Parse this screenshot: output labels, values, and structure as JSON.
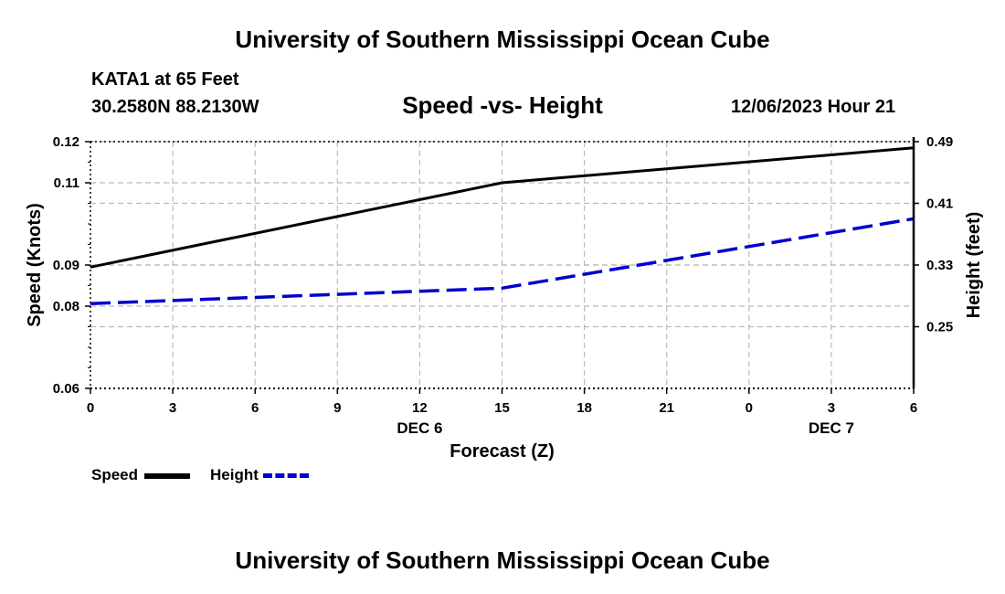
{
  "header": {
    "title": "University of Southern Mississippi Ocean Cube",
    "station": "KATA1 at 65 Feet",
    "coords": "30.2580N  88.2130W",
    "chart_title": "Speed -vs- Height",
    "datetime": "12/06/2023 Hour 21"
  },
  "footer": {
    "title": "University of Southern Mississippi Ocean Cube"
  },
  "legend": {
    "speed_label": "Speed",
    "height_label": "Height"
  },
  "colors": {
    "speed": "#000000",
    "height": "#0000cc",
    "grid": "#bbbbbb"
  },
  "chart_data": {
    "type": "line",
    "title": "Speed -vs- Height",
    "xlabel": "Forecast (Z)",
    "ylabel": "Speed (Knots)",
    "y2label": "Height (feet)",
    "x": [
      0,
      3,
      6,
      9,
      12,
      15,
      18,
      21,
      24,
      27,
      30
    ],
    "x_tick_labels": [
      "0",
      "3",
      "6",
      "9",
      "12",
      "15",
      "18",
      "21",
      "0",
      "3",
      "6"
    ],
    "date_labels": [
      {
        "x": 12,
        "label": "DEC 6"
      },
      {
        "x": 27,
        "label": "DEC 7"
      }
    ],
    "xlim": [
      0,
      30
    ],
    "ylim": [
      0.06,
      0.12
    ],
    "y_ticks": [
      0.06,
      0.08,
      0.09,
      0.11,
      0.12
    ],
    "y_tick_labels": [
      "0.06",
      "0.08",
      "0.09",
      "0.11",
      "0.12"
    ],
    "y2lim": [
      0.17,
      0.49
    ],
    "y2_ticks": [
      0.25,
      0.33,
      0.41,
      0.49
    ],
    "y2_tick_labels": [
      "0.25",
      "0.33",
      "0.41",
      "0.49"
    ],
    "grid": true,
    "series": [
      {
        "name": "Speed",
        "axis": "left",
        "style": "solid",
        "x": [
          0,
          15,
          30
        ],
        "values": [
          0.0895,
          0.11,
          0.1185
        ]
      },
      {
        "name": "Height",
        "axis": "right",
        "style": "dashed",
        "x": [
          0,
          15,
          30
        ],
        "values": [
          0.28,
          0.3,
          0.39
        ]
      }
    ]
  }
}
